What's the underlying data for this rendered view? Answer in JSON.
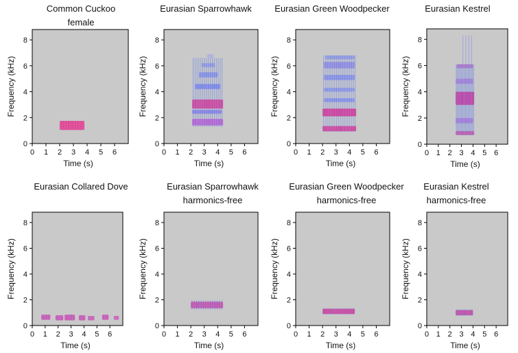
{
  "figure": {
    "background": "#ffffff",
    "plot_background": "#c9c9c9"
  },
  "chart_data": [
    {
      "type": "heatmap",
      "title_lines": [
        "Common Cuckoo",
        "female"
      ],
      "xlabel": "Time (s)",
      "ylabel": "Frequency (kHz)",
      "xlim": [
        0,
        7
      ],
      "ylim": [
        0,
        8.8
      ],
      "xticks": [
        0,
        1,
        2,
        3,
        4,
        5,
        6
      ],
      "yticks": [
        0,
        2,
        4,
        6,
        8
      ],
      "bands": [
        {
          "t0": 2.0,
          "t1": 3.8,
          "f0": 1.05,
          "f1": 1.75,
          "color": "#e0308a",
          "opacity": 0.85
        }
      ],
      "streaks": []
    },
    {
      "type": "heatmap",
      "title_lines": [
        "Eurasian Sparrowhawk"
      ],
      "xlabel": "Time (s)",
      "ylabel": "Frequency (kHz)",
      "xlim": [
        0,
        7
      ],
      "ylim": [
        0,
        8.8
      ],
      "xticks": [
        0,
        1,
        2,
        3,
        4,
        5,
        6
      ],
      "yticks": [
        0,
        2,
        4,
        6,
        8
      ],
      "bands": [
        {
          "t0": 2.1,
          "t1": 4.4,
          "f0": 1.4,
          "f1": 1.9,
          "color": "#c050d0",
          "opacity": 0.8
        },
        {
          "t0": 2.1,
          "t1": 4.4,
          "f0": 2.7,
          "f1": 3.4,
          "color": "#e0308a",
          "opacity": 0.85
        },
        {
          "t0": 2.1,
          "t1": 4.3,
          "f0": 2.3,
          "f1": 2.6,
          "color": "#7a6ee8",
          "opacity": 0.7
        },
        {
          "t0": 2.3,
          "t1": 4.2,
          "f0": 4.2,
          "f1": 4.6,
          "color": "#6a78f0",
          "opacity": 0.7
        },
        {
          "t0": 2.6,
          "t1": 4.0,
          "f0": 5.1,
          "f1": 5.5,
          "color": "#6a78f0",
          "opacity": 0.6
        },
        {
          "t0": 2.8,
          "t1": 3.8,
          "f0": 5.9,
          "f1": 6.2,
          "color": "#6a78f0",
          "opacity": 0.5
        },
        {
          "t0": 3.2,
          "t1": 3.7,
          "f0": 6.6,
          "f1": 6.9,
          "color": "#8a90f0",
          "opacity": 0.45
        }
      ],
      "streaks": [
        {
          "t0": 2.1,
          "t1": 4.4,
          "f0": 1.3,
          "f1": 6.6,
          "count": 16,
          "color": "#4a6af0",
          "opacity": 0.45
        }
      ]
    },
    {
      "type": "heatmap",
      "title_lines": [
        "Eurasian Green Woodpecker"
      ],
      "xlabel": "Time (s)",
      "ylabel": "Frequency (kHz)",
      "xlim": [
        0,
        7
      ],
      "ylim": [
        0,
        8.8
      ],
      "xticks": [
        0,
        1,
        2,
        3,
        4,
        5,
        6
      ],
      "yticks": [
        0,
        2,
        4,
        6,
        8
      ],
      "bands": [
        {
          "t0": 2.0,
          "t1": 4.5,
          "f0": 0.95,
          "f1": 1.35,
          "color": "#e0308a",
          "opacity": 0.85
        },
        {
          "t0": 2.0,
          "t1": 4.5,
          "f0": 2.1,
          "f1": 2.7,
          "color": "#e0308a",
          "opacity": 0.9
        },
        {
          "t0": 2.1,
          "t1": 4.4,
          "f0": 3.2,
          "f1": 3.5,
          "color": "#6a78f0",
          "opacity": 0.6
        },
        {
          "t0": 2.1,
          "t1": 4.4,
          "f0": 4.0,
          "f1": 4.3,
          "color": "#6a78f0",
          "opacity": 0.55
        },
        {
          "t0": 2.1,
          "t1": 4.4,
          "f0": 4.9,
          "f1": 5.3,
          "color": "#6a78f0",
          "opacity": 0.6
        },
        {
          "t0": 2.1,
          "t1": 4.4,
          "f0": 5.8,
          "f1": 6.3,
          "color": "#7a6ee8",
          "opacity": 0.6
        },
        {
          "t0": 2.2,
          "t1": 4.4,
          "f0": 6.5,
          "f1": 6.8,
          "color": "#6a78f0",
          "opacity": 0.5
        }
      ],
      "streaks": [
        {
          "t0": 2.0,
          "t1": 4.5,
          "f0": 0.9,
          "f1": 6.8,
          "count": 18,
          "color": "#4a6af0",
          "opacity": 0.4
        }
      ]
    },
    {
      "type": "heatmap",
      "title_lines": [
        "Eurasian Kestrel"
      ],
      "xlabel": "Time (s)",
      "ylabel": "Frequency (kHz)",
      "xlim": [
        0,
        7
      ],
      "ylim": [
        0,
        8.8
      ],
      "xticks": [
        0,
        1,
        2,
        3,
        4,
        5,
        6
      ],
      "yticks": [
        0,
        2,
        4,
        6,
        8
      ],
      "bands": [
        {
          "t0": 2.5,
          "t1": 4.1,
          "f0": 3.0,
          "f1": 4.0,
          "color": "#e0308a",
          "opacity": 0.9
        },
        {
          "t0": 2.5,
          "t1": 4.1,
          "f0": 0.7,
          "f1": 1.0,
          "color": "#e0308a",
          "opacity": 0.7
        },
        {
          "t0": 2.5,
          "t1": 4.0,
          "f0": 1.6,
          "f1": 2.0,
          "color": "#b050d0",
          "opacity": 0.55
        },
        {
          "t0": 2.5,
          "t1": 4.0,
          "f0": 4.6,
          "f1": 5.0,
          "color": "#b050d0",
          "opacity": 0.5
        },
        {
          "t0": 2.6,
          "t1": 4.0,
          "f0": 5.8,
          "f1": 6.1,
          "color": "#c040b0",
          "opacity": 0.55
        }
      ],
      "streaks": [
        {
          "t0": 2.5,
          "t1": 4.1,
          "f0": 0.7,
          "f1": 6.1,
          "count": 14,
          "color": "#4a6af0",
          "opacity": 0.5
        },
        {
          "t0": 3.0,
          "t1": 4.0,
          "f0": 6.1,
          "f1": 8.3,
          "count": 4,
          "color": "#6a78f0",
          "opacity": 0.45
        }
      ]
    },
    {
      "type": "heatmap",
      "title_lines": [
        "Eurasian Collared Dove"
      ],
      "xlabel": "Time (s)",
      "ylabel": "Frequency (kHz)",
      "xlim": [
        0,
        7
      ],
      "ylim": [
        0,
        8.8
      ],
      "xticks": [
        0,
        1,
        2,
        3,
        4,
        5,
        6
      ],
      "yticks": [
        0,
        2,
        4,
        6,
        8
      ],
      "bands": [
        {
          "t0": 0.7,
          "t1": 1.4,
          "f0": 0.45,
          "f1": 0.85,
          "color": "#c040b0",
          "opacity": 0.8
        },
        {
          "t0": 1.8,
          "t1": 2.4,
          "f0": 0.4,
          "f1": 0.8,
          "color": "#c040b0",
          "opacity": 0.8
        },
        {
          "t0": 2.5,
          "t1": 3.3,
          "f0": 0.4,
          "f1": 0.85,
          "color": "#c040b0",
          "opacity": 0.8
        },
        {
          "t0": 3.6,
          "t1": 4.1,
          "f0": 0.4,
          "f1": 0.8,
          "color": "#c040b0",
          "opacity": 0.8
        },
        {
          "t0": 4.3,
          "t1": 4.8,
          "f0": 0.4,
          "f1": 0.75,
          "color": "#c040b0",
          "opacity": 0.75
        },
        {
          "t0": 5.4,
          "t1": 5.9,
          "f0": 0.45,
          "f1": 0.85,
          "color": "#c040b0",
          "opacity": 0.8
        },
        {
          "t0": 6.3,
          "t1": 6.7,
          "f0": 0.45,
          "f1": 0.75,
          "color": "#c040b0",
          "opacity": 0.75
        }
      ],
      "streaks": []
    },
    {
      "type": "heatmap",
      "title_lines": [
        "Eurasian Sparrowhawk",
        "harmonics-free"
      ],
      "xlabel": "Time (s)",
      "ylabel": "Frequency (kHz)",
      "xlim": [
        0,
        7
      ],
      "ylim": [
        0,
        8.8
      ],
      "xticks": [
        0,
        1,
        2,
        3,
        4,
        5,
        6
      ],
      "yticks": [
        0,
        2,
        4,
        6,
        8
      ],
      "bands": [
        {
          "t0": 2.0,
          "t1": 4.4,
          "f0": 1.35,
          "f1": 1.85,
          "color": "#d03c9c",
          "opacity": 0.8
        }
      ],
      "streaks": [
        {
          "t0": 2.0,
          "t1": 4.4,
          "f0": 1.25,
          "f1": 1.95,
          "count": 14,
          "color": "#4a6af0",
          "opacity": 0.55
        }
      ]
    },
    {
      "type": "heatmap",
      "title_lines": [
        "Eurasian Green Woodpecker",
        "harmonics-free"
      ],
      "xlabel": "Time (s)",
      "ylabel": "Frequency (kHz)",
      "xlim": [
        0,
        7
      ],
      "ylim": [
        0,
        8.8
      ],
      "xticks": [
        0,
        1,
        2,
        3,
        4,
        5,
        6
      ],
      "yticks": [
        0,
        2,
        4,
        6,
        8
      ],
      "bands": [
        {
          "t0": 2.0,
          "t1": 4.4,
          "f0": 0.9,
          "f1": 1.3,
          "color": "#e0308a",
          "opacity": 0.85
        }
      ],
      "streaks": [
        {
          "t0": 2.0,
          "t1": 4.4,
          "f0": 0.85,
          "f1": 1.35,
          "count": 18,
          "color": "#4a6af0",
          "opacity": 0.45
        }
      ]
    },
    {
      "type": "heatmap",
      "title_lines": [
        "Eurasian Kestrel",
        "harmonics-free"
      ],
      "xlabel": "Time (s)",
      "ylabel": "Frequency (kHz)",
      "xlim": [
        0,
        7
      ],
      "ylim": [
        0,
        8.8
      ],
      "xticks": [
        0,
        1,
        2,
        3,
        4,
        5,
        6
      ],
      "yticks": [
        0,
        2,
        4,
        6,
        8
      ],
      "bands": [
        {
          "t0": 2.5,
          "t1": 4.0,
          "f0": 0.8,
          "f1": 1.2,
          "color": "#e0308a",
          "opacity": 0.8
        }
      ],
      "streaks": [
        {
          "t0": 2.5,
          "t1": 4.0,
          "f0": 0.75,
          "f1": 1.25,
          "count": 12,
          "color": "#4a6af0",
          "opacity": 0.45
        }
      ]
    }
  ]
}
